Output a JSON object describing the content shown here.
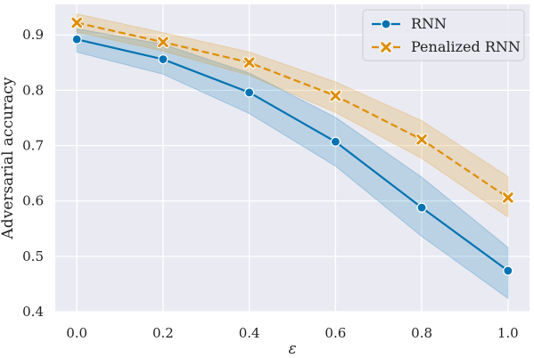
{
  "chart_data": {
    "type": "line",
    "title": "",
    "xlabel": "ε",
    "ylabel": "Adversarial accuracy",
    "xlim": [
      -0.05,
      1.05
    ],
    "ylim": [
      0.4,
      0.955
    ],
    "x": [
      0.0,
      0.2,
      0.4,
      0.6,
      0.8,
      1.0
    ],
    "x_tick_labels": [
      "0.0",
      "0.2",
      "0.4",
      "0.6",
      "0.8",
      "1.0"
    ],
    "y_ticks": [
      0.4,
      0.5,
      0.6,
      0.7,
      0.8,
      0.9
    ],
    "y_tick_labels": [
      "0.4",
      "0.5",
      "0.6",
      "0.7",
      "0.8",
      "0.9"
    ],
    "grid": true,
    "legend_position": "top-right",
    "background_color": "#eaeaf2",
    "series": [
      {
        "name": "RNN",
        "color": "#0173b2",
        "marker": "circle",
        "line_style": "solid",
        "values": [
          0.892,
          0.856,
          0.796,
          0.707,
          0.588,
          0.474
        ],
        "band_lower": [
          0.869,
          0.829,
          0.758,
          0.663,
          0.536,
          0.424
        ],
        "band_upper": [
          0.911,
          0.883,
          0.831,
          0.751,
          0.643,
          0.516
        ]
      },
      {
        "name": "Penalized RNN",
        "color": "#de8f05",
        "marker": "x",
        "line_style": "dashed",
        "values": [
          0.922,
          0.887,
          0.85,
          0.79,
          0.711,
          0.606
        ],
        "band_lower": [
          0.905,
          0.871,
          0.827,
          0.76,
          0.677,
          0.571
        ],
        "band_upper": [
          0.938,
          0.904,
          0.869,
          0.815,
          0.745,
          0.644
        ]
      }
    ]
  }
}
